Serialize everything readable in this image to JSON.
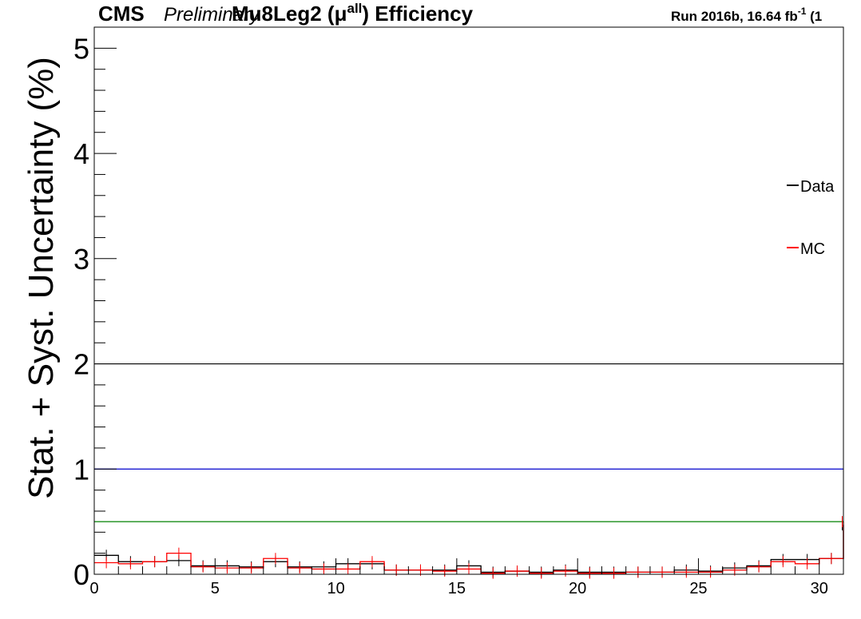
{
  "header": {
    "experiment": "CMS",
    "status": "Preliminary",
    "title_main": "Mu8Leg2 (μ",
    "title_sup": "all",
    "title_end": ") Efficiency",
    "run_text": "Run 2016b,  16.64 fb",
    "run_sup": "-1",
    "run_end": "  (1"
  },
  "colors": {
    "data": "#000000",
    "mc": "#ff0000",
    "ref_2": "#000000",
    "ref_1": "#0000cc",
    "ref_05": "#008000"
  },
  "chart_data": {
    "type": "line",
    "title": "Mu8Leg2 (μ^all) Efficiency",
    "xlabel": "",
    "ylabel": "Stat. + Syst. Uncertainty (%)",
    "xlim": [
      0,
      31
    ],
    "ylim": [
      0,
      5.2
    ],
    "x_ticks": [
      0,
      5,
      10,
      15,
      20,
      25,
      30
    ],
    "y_ticks": [
      0,
      1,
      2,
      3,
      4,
      5
    ],
    "bin_edges": [
      0,
      1,
      2,
      3,
      4,
      5,
      6,
      7,
      8,
      9,
      10,
      11,
      12,
      13,
      14,
      15,
      16,
      17,
      18,
      19,
      20,
      21,
      22,
      23,
      24,
      25,
      26,
      27,
      28,
      29,
      30,
      31
    ],
    "series": [
      {
        "name": "Data",
        "style": "step",
        "values": [
          0.18,
          0.12,
          0.12,
          0.13,
          0.08,
          0.08,
          0.07,
          0.12,
          0.07,
          0.07,
          0.1,
          0.1,
          0.04,
          0.04,
          0.04,
          0.08,
          0.02,
          0.03,
          0.02,
          0.04,
          0.02,
          0.02,
          0.02,
          0.02,
          0.04,
          0.03,
          0.06,
          0.08,
          0.14,
          0.14,
          0.15,
          0.47
        ]
      },
      {
        "name": "MC",
        "style": "step",
        "values": [
          0.11,
          0.1,
          0.12,
          0.2,
          0.07,
          0.06,
          0.06,
          0.15,
          0.06,
          0.05,
          0.05,
          0.12,
          0.04,
          0.04,
          0.03,
          0.05,
          0.01,
          0.03,
          0.01,
          0.03,
          0.01,
          0.01,
          0.02,
          0.02,
          0.02,
          0.02,
          0.04,
          0.07,
          0.12,
          0.1,
          0.15,
          0.5
        ]
      }
    ],
    "reference_lines": [
      {
        "y": 2.0,
        "color": "#000000"
      },
      {
        "y": 1.0,
        "color": "#0000cc"
      },
      {
        "y": 0.5,
        "color": "#008000"
      }
    ],
    "legend": {
      "placement": "right",
      "entries": [
        {
          "label": "Data",
          "color": "#000000"
        },
        {
          "label": "MC",
          "color": "#ff0000"
        }
      ]
    }
  }
}
